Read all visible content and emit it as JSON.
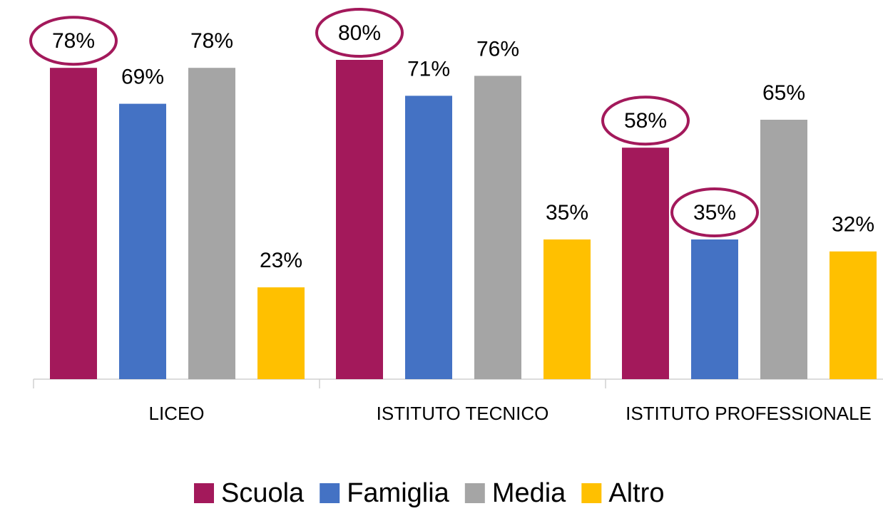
{
  "chart_data": {
    "type": "bar",
    "categories": [
      "LICEO",
      "ISTITUTO TECNICO",
      "ISTITUTO PROFESSIONALE"
    ],
    "series": [
      {
        "name": "Scuola",
        "color": "#a3195b",
        "values": [
          78,
          80,
          58
        ],
        "value_labels": [
          "78%",
          "80%",
          "58%"
        ]
      },
      {
        "name": "Famiglia",
        "color": "#4472c4",
        "values": [
          69,
          71,
          35
        ],
        "value_labels": [
          "69%",
          "71%",
          "35%"
        ]
      },
      {
        "name": "Media",
        "color": "#a5a5a5",
        "values": [
          78,
          76,
          65
        ],
        "value_labels": [
          "78%",
          "76%",
          "65%"
        ]
      },
      {
        "name": "Altro",
        "color": "#ffc000",
        "values": [
          23,
          35,
          32
        ],
        "value_labels": [
          "23%",
          "35%",
          "32%"
        ]
      }
    ],
    "legend": "bottom"
  }
}
